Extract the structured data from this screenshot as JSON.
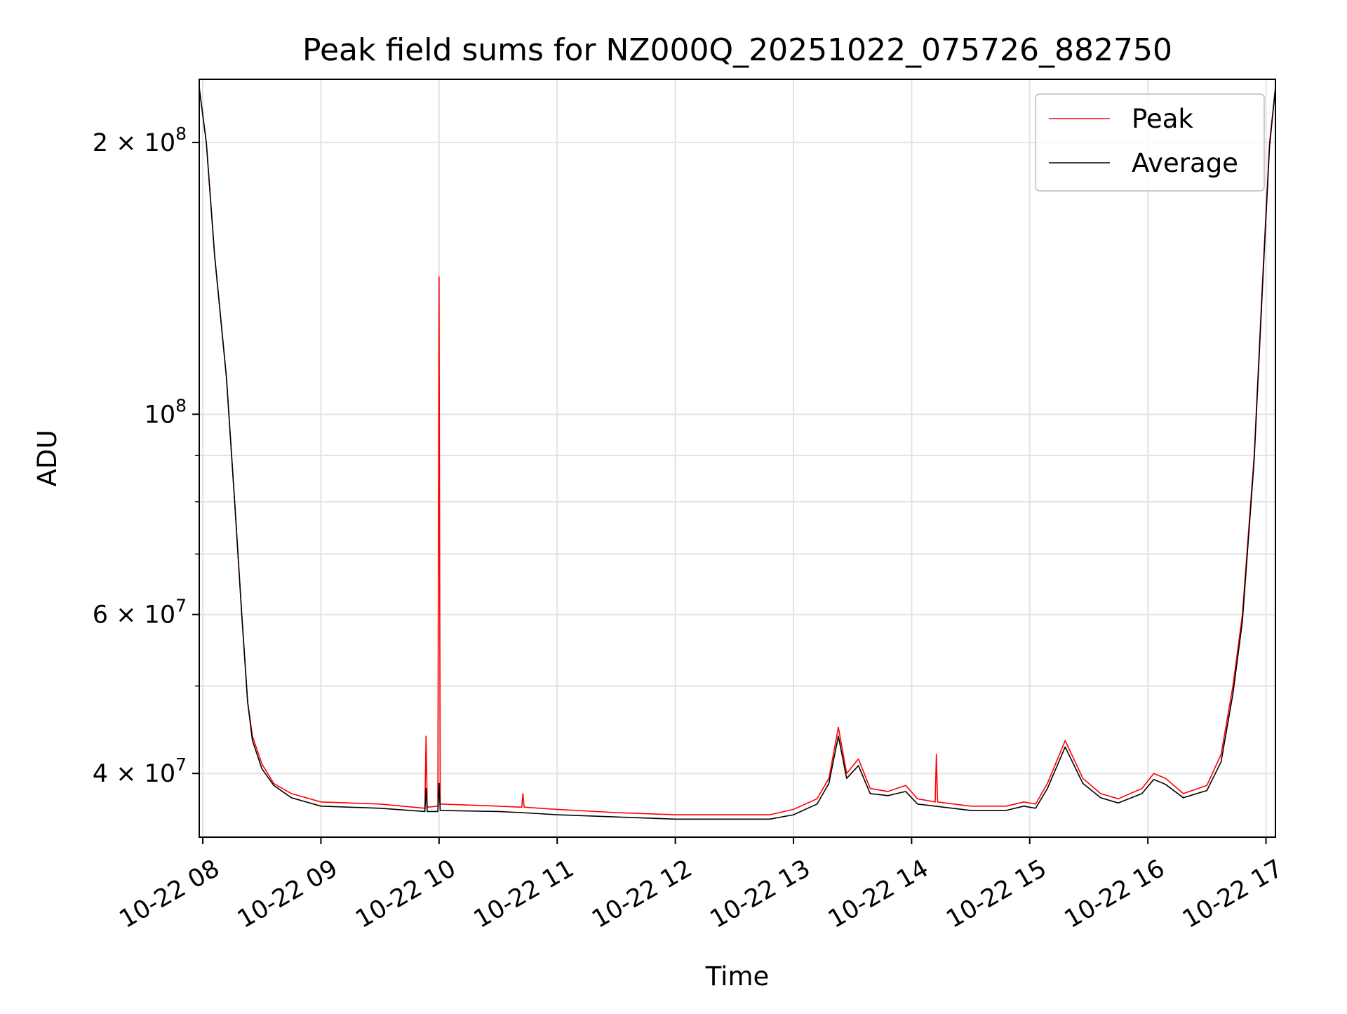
{
  "chart_data": {
    "type": "line",
    "title": "Peak field sums for NZ000Q_20251022_075726_882750",
    "xlabel": "Time",
    "ylabel": "ADU",
    "yscale": "log",
    "xlim_hours": [
      7.97,
      17.08
    ],
    "ylim": [
      34000000,
      235000000
    ],
    "grid": true,
    "legend_position": "upper-right",
    "x_ticks": [
      {
        "value": 8,
        "label": "10-22 08"
      },
      {
        "value": 9,
        "label": "10-22 09"
      },
      {
        "value": 10,
        "label": "10-22 10"
      },
      {
        "value": 11,
        "label": "10-22 11"
      },
      {
        "value": 12,
        "label": "10-22 12"
      },
      {
        "value": 13,
        "label": "10-22 13"
      },
      {
        "value": 14,
        "label": "10-22 14"
      },
      {
        "value": 15,
        "label": "10-22 15"
      },
      {
        "value": 16,
        "label": "10-22 16"
      },
      {
        "value": 17,
        "label": "10-22 17"
      }
    ],
    "y_major_ticks": [
      {
        "value": 40000000,
        "mantissa": "4",
        "exponent": "7"
      },
      {
        "value": 60000000,
        "mantissa": "6",
        "exponent": "7"
      },
      {
        "value": 100000000,
        "mantissa": "",
        "exponent": "8"
      },
      {
        "value": 200000000,
        "mantissa": "2",
        "exponent": "8"
      }
    ],
    "y_minor_ticks": [
      50000000,
      70000000,
      80000000,
      90000000
    ],
    "series": [
      {
        "name": "Peak",
        "color": "#ff0000",
        "points": [
          [
            7.97,
            230000000
          ],
          [
            8.03,
            200000000
          ],
          [
            8.1,
            150000000
          ],
          [
            8.2,
            110000000
          ],
          [
            8.27,
            80000000
          ],
          [
            8.33,
            60000000
          ],
          [
            8.38,
            48000000
          ],
          [
            8.42,
            44000000
          ],
          [
            8.5,
            41000000
          ],
          [
            8.6,
            39000000
          ],
          [
            8.75,
            38000000
          ],
          [
            9.0,
            37200000
          ],
          [
            9.5,
            37000000
          ],
          [
            9.88,
            36600000
          ],
          [
            9.89,
            44000000
          ],
          [
            9.9,
            36700000
          ],
          [
            9.99,
            36800000
          ],
          [
            10.0,
            142000000
          ],
          [
            10.01,
            37000000
          ],
          [
            10.5,
            36800000
          ],
          [
            10.7,
            36700000
          ],
          [
            10.71,
            38000000
          ],
          [
            10.72,
            36700000
          ],
          [
            11.0,
            36500000
          ],
          [
            11.5,
            36200000
          ],
          [
            12.0,
            36000000
          ],
          [
            12.5,
            36000000
          ],
          [
            12.8,
            36000000
          ],
          [
            13.0,
            36500000
          ],
          [
            13.2,
            37500000
          ],
          [
            13.3,
            39500000
          ],
          [
            13.38,
            45000000
          ],
          [
            13.45,
            40000000
          ],
          [
            13.55,
            41500000
          ],
          [
            13.65,
            38500000
          ],
          [
            13.8,
            38200000
          ],
          [
            13.95,
            38800000
          ],
          [
            14.05,
            37500000
          ],
          [
            14.2,
            37200000
          ],
          [
            14.21,
            42000000
          ],
          [
            14.22,
            37200000
          ],
          [
            14.5,
            36800000
          ],
          [
            14.8,
            36800000
          ],
          [
            14.95,
            37200000
          ],
          [
            15.05,
            37000000
          ],
          [
            15.15,
            39000000
          ],
          [
            15.3,
            43500000
          ],
          [
            15.45,
            39500000
          ],
          [
            15.6,
            38000000
          ],
          [
            15.75,
            37500000
          ],
          [
            15.95,
            38500000
          ],
          [
            16.05,
            40000000
          ],
          [
            16.15,
            39500000
          ],
          [
            16.3,
            38000000
          ],
          [
            16.5,
            38800000
          ],
          [
            16.62,
            42000000
          ],
          [
            16.72,
            50000000
          ],
          [
            16.8,
            60000000
          ],
          [
            16.9,
            90000000
          ],
          [
            16.97,
            140000000
          ],
          [
            17.03,
            200000000
          ],
          [
            17.08,
            230000000
          ]
        ]
      },
      {
        "name": "Average",
        "color": "#000000",
        "points": [
          [
            7.97,
            230000000
          ],
          [
            8.03,
            200000000
          ],
          [
            8.1,
            150000000
          ],
          [
            8.2,
            110000000
          ],
          [
            8.27,
            80000000
          ],
          [
            8.33,
            60000000
          ],
          [
            8.38,
            48000000
          ],
          [
            8.42,
            43500000
          ],
          [
            8.5,
            40500000
          ],
          [
            8.6,
            38800000
          ],
          [
            8.75,
            37600000
          ],
          [
            9.0,
            36800000
          ],
          [
            9.5,
            36600000
          ],
          [
            9.88,
            36300000
          ],
          [
            9.89,
            38500000
          ],
          [
            9.9,
            36300000
          ],
          [
            9.99,
            36300000
          ],
          [
            10.0,
            39000000
          ],
          [
            10.01,
            36400000
          ],
          [
            10.5,
            36300000
          ],
          [
            10.7,
            36200000
          ],
          [
            11.0,
            36000000
          ],
          [
            11.5,
            35800000
          ],
          [
            12.0,
            35600000
          ],
          [
            12.5,
            35600000
          ],
          [
            12.8,
            35600000
          ],
          [
            13.0,
            36000000
          ],
          [
            13.2,
            37000000
          ],
          [
            13.3,
            39000000
          ],
          [
            13.38,
            44000000
          ],
          [
            13.45,
            39500000
          ],
          [
            13.55,
            40800000
          ],
          [
            13.65,
            38000000
          ],
          [
            13.8,
            37800000
          ],
          [
            13.95,
            38200000
          ],
          [
            14.05,
            37000000
          ],
          [
            14.2,
            36800000
          ],
          [
            14.5,
            36400000
          ],
          [
            14.8,
            36400000
          ],
          [
            14.95,
            36800000
          ],
          [
            15.05,
            36600000
          ],
          [
            15.15,
            38500000
          ],
          [
            15.3,
            42800000
          ],
          [
            15.45,
            39000000
          ],
          [
            15.6,
            37600000
          ],
          [
            15.75,
            37100000
          ],
          [
            15.95,
            38000000
          ],
          [
            16.05,
            39400000
          ],
          [
            16.15,
            38900000
          ],
          [
            16.3,
            37600000
          ],
          [
            16.5,
            38300000
          ],
          [
            16.62,
            41200000
          ],
          [
            16.72,
            49000000
          ],
          [
            16.8,
            59000000
          ],
          [
            16.9,
            89000000
          ],
          [
            16.97,
            138000000
          ],
          [
            17.03,
            198000000
          ],
          [
            17.08,
            230000000
          ]
        ]
      }
    ]
  }
}
